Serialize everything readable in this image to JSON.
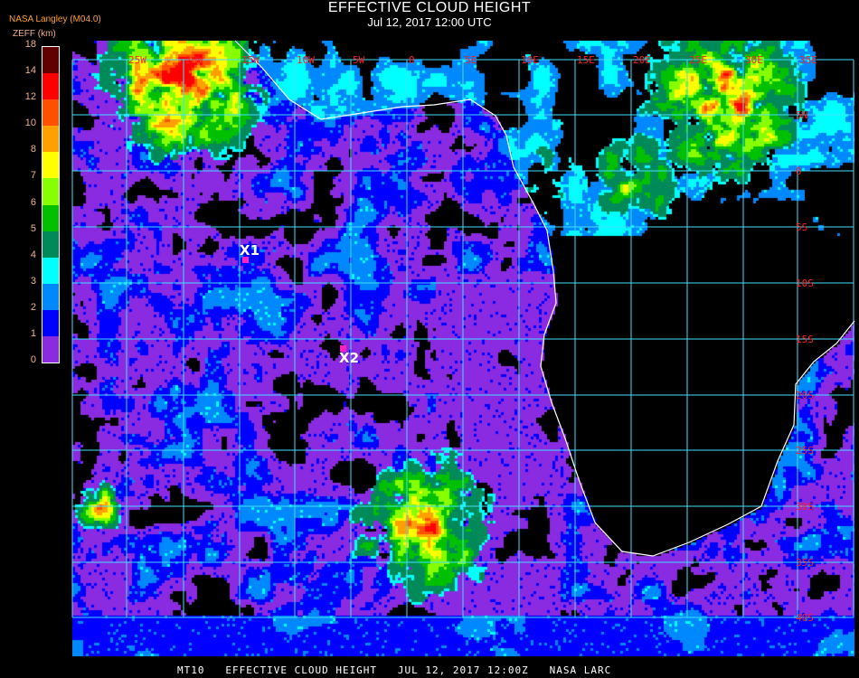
{
  "header": {
    "title": "EFFECTIVE CLOUD HEIGHT",
    "subtitle": "Jul 12, 2017 12:00 UTC",
    "source": "NASA Langley (M04.0)",
    "units": "ZEFF (km)"
  },
  "colorbar": {
    "ticks": [
      "0",
      "1",
      "2",
      "3",
      "4",
      "5",
      "6",
      "7",
      "8",
      "10",
      "12",
      "14",
      "18"
    ],
    "colors": [
      "#8a2be2",
      "#0000ff",
      "#0088ff",
      "#00ffff",
      "#008a5a",
      "#00c000",
      "#88ff00",
      "#ffff00",
      "#ffa000",
      "#ff5000",
      "#ff0000",
      "#600000"
    ]
  },
  "map": {
    "longitude_labels": [
      "25W",
      "20W",
      "15W",
      "10W",
      "5W",
      "0",
      "5E",
      "10E",
      "15E",
      "20E",
      "25E",
      "30E",
      "35E"
    ],
    "latitude_labels": [
      "5N",
      "0",
      "5S",
      "10S",
      "15S",
      "20S",
      "25S",
      "30S",
      "35S",
      "40S"
    ],
    "grid_color": "#40e0ff",
    "label_color": "#ff2020",
    "coast_color": "#ffffff",
    "markers": [
      {
        "label": "X1"
      },
      {
        "label": "X2"
      }
    ]
  },
  "footer": "MT10   EFFECTIVE CLOUD HEIGHT   JUL 12, 2017 12:00Z   NASA LARC"
}
